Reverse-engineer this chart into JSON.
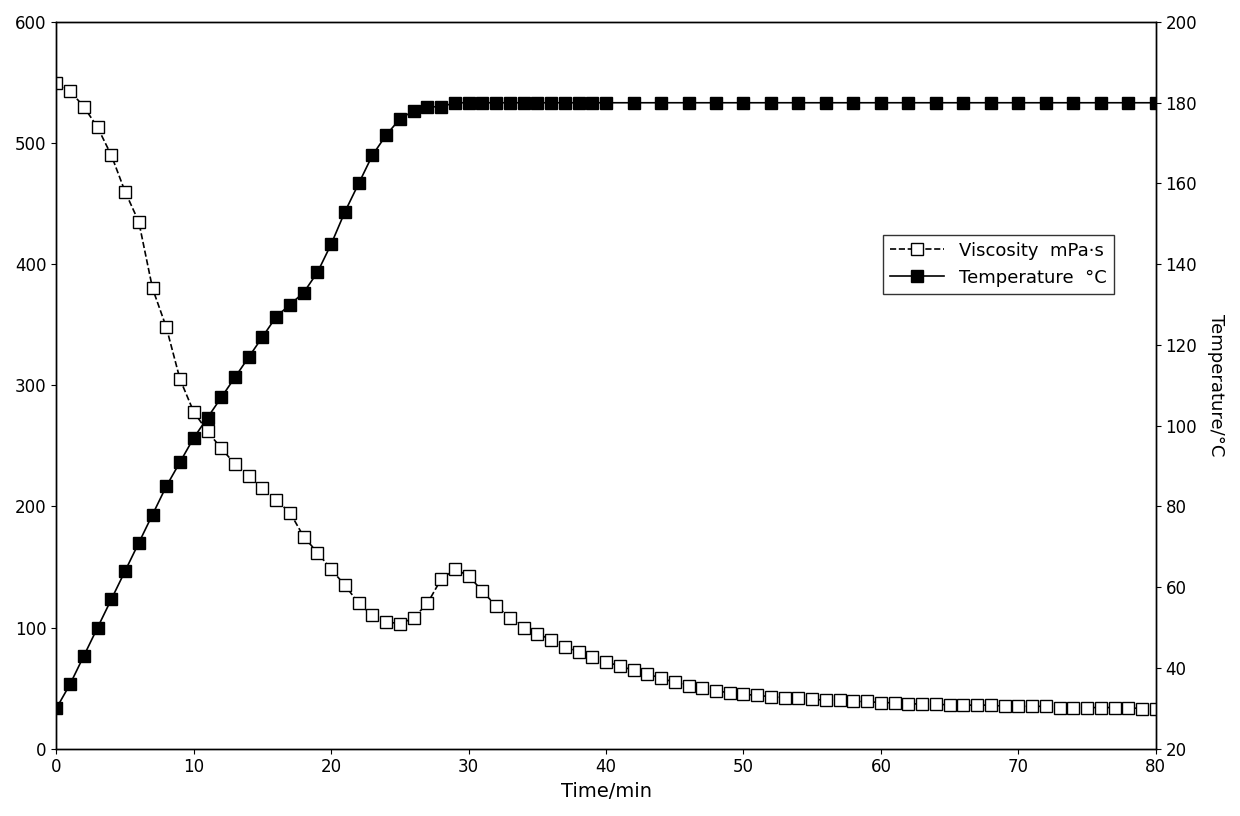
{
  "viscosity_time": [
    0,
    1,
    2,
    3,
    4,
    5,
    6,
    7,
    8,
    9,
    10,
    11,
    12,
    13,
    14,
    15,
    16,
    17,
    18,
    19,
    20,
    21,
    22,
    23,
    24,
    25,
    26,
    27,
    28,
    29,
    30,
    31,
    32,
    33,
    34,
    35,
    36,
    37,
    38,
    39,
    40,
    41,
    42,
    43,
    44,
    45,
    46,
    47,
    48,
    49,
    50,
    51,
    52,
    53,
    54,
    55,
    56,
    57,
    58,
    59,
    60,
    61,
    62,
    63,
    64,
    65,
    66,
    67,
    68,
    69,
    70,
    71,
    72,
    73,
    74,
    75,
    76,
    77,
    78,
    79,
    80
  ],
  "viscosity_values": [
    550,
    543,
    530,
    513,
    490,
    460,
    435,
    380,
    348,
    305,
    278,
    262,
    248,
    235,
    225,
    215,
    205,
    195,
    175,
    162,
    148,
    135,
    120,
    110,
    105,
    103,
    108,
    120,
    140,
    148,
    143,
    130,
    118,
    108,
    100,
    95,
    90,
    84,
    80,
    76,
    72,
    68,
    65,
    62,
    58,
    55,
    52,
    50,
    48,
    46,
    45,
    44,
    43,
    42,
    42,
    41,
    40,
    40,
    39,
    39,
    38,
    38,
    37,
    37,
    37,
    36,
    36,
    36,
    36,
    35,
    35,
    35,
    35,
    34,
    34,
    34,
    34,
    34,
    34,
    33,
    33
  ],
  "temperature_time": [
    0,
    1,
    2,
    3,
    4,
    5,
    6,
    7,
    8,
    9,
    10,
    11,
    12,
    13,
    14,
    15,
    16,
    17,
    18,
    19,
    20,
    21,
    22,
    23,
    24,
    25,
    26,
    27,
    28,
    29,
    30,
    31,
    32,
    33,
    34,
    35,
    36,
    37,
    38,
    39,
    40,
    42,
    44,
    46,
    48,
    50,
    52,
    54,
    56,
    58,
    60,
    62,
    64,
    66,
    68,
    70,
    72,
    74,
    76,
    78,
    80
  ],
  "temperature_values": [
    30,
    36,
    43,
    50,
    57,
    64,
    71,
    78,
    85,
    91,
    97,
    102,
    107,
    112,
    117,
    122,
    127,
    130,
    133,
    138,
    145,
    153,
    160,
    167,
    172,
    176,
    178,
    179,
    179,
    180,
    180,
    180,
    180,
    180,
    180,
    180,
    180,
    180,
    180,
    180,
    180,
    180,
    180,
    180,
    180,
    180,
    180,
    180,
    180,
    180,
    180,
    180,
    180,
    180,
    180,
    180,
    180,
    180,
    180,
    180,
    180
  ],
  "xlabel": "Time/min",
  "ylabel_right": "Temperature/°C",
  "legend_viscosity": "Viscosity  mPa·s",
  "legend_temperature": "Temperature  °C",
  "xlim": [
    0,
    80
  ],
  "ylim_left": [
    0,
    600
  ],
  "ylim_right": [
    20,
    200
  ],
  "xticks": [
    0,
    10,
    20,
    30,
    40,
    50,
    60,
    70,
    80
  ],
  "yticks_left": [
    0,
    100,
    200,
    300,
    400,
    500,
    600
  ],
  "yticks_right": [
    20,
    40,
    60,
    80,
    100,
    120,
    140,
    160,
    180,
    200
  ],
  "line_color": "black",
  "linewidth": 1.2,
  "markersize": 8,
  "background_color": "white"
}
